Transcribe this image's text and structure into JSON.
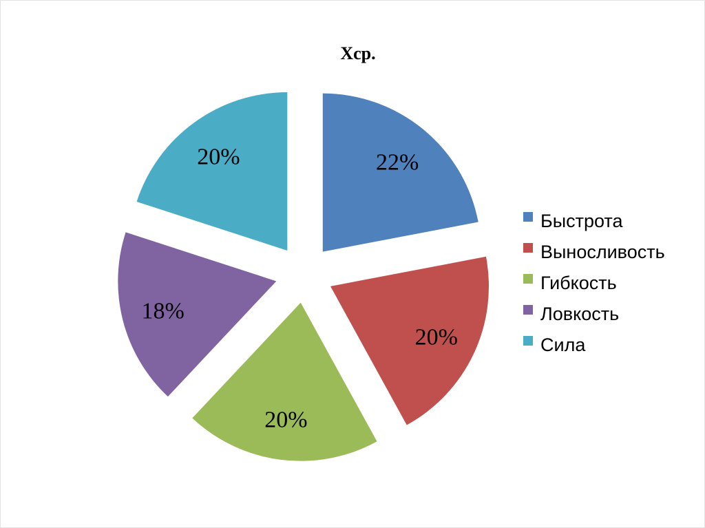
{
  "chart_data": {
    "type": "pie",
    "title": "Xср.",
    "exploded": true,
    "legend_position": "right",
    "slices": [
      {
        "name": "Быстрота",
        "value": 22,
        "label": "22%",
        "color": "#4f81bd"
      },
      {
        "name": "Выносливость",
        "value": 20,
        "label": "20%",
        "color": "#c0504d"
      },
      {
        "name": "Гибкость",
        "value": 20,
        "label": "20%",
        "color": "#9bbb59"
      },
      {
        "name": "Ловкость",
        "value": 18,
        "label": "18%",
        "color": "#8064a2"
      },
      {
        "name": "Сила",
        "value": 20,
        "label": "20%",
        "color": "#4bacc6"
      }
    ]
  }
}
